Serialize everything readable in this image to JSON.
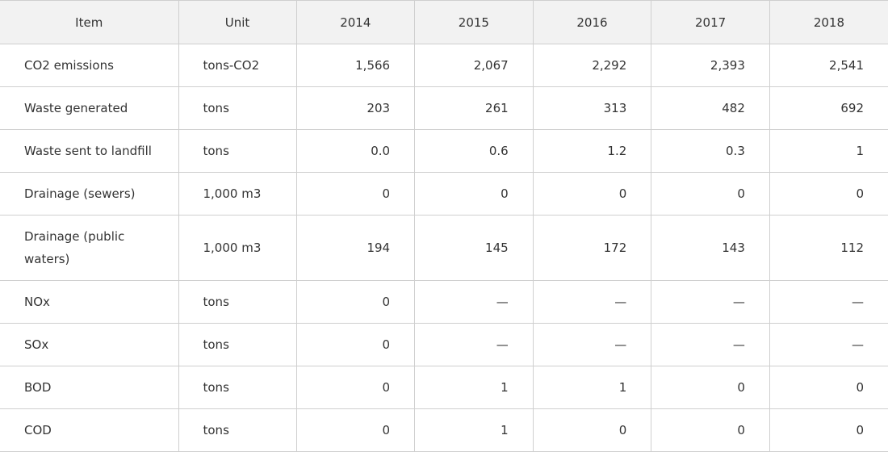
{
  "table": {
    "headers": {
      "item": "Item",
      "unit": "Unit",
      "years": [
        "2014",
        "2015",
        "2016",
        "2017",
        "2018"
      ]
    },
    "rows": [
      {
        "item": "CO2 emissions",
        "unit": "tons-CO2",
        "values": [
          "1,566",
          "2,067",
          "2,292",
          "2,393",
          "2,541"
        ]
      },
      {
        "item": "Waste generated",
        "unit": "tons",
        "values": [
          "203",
          "261",
          "313",
          "482",
          "692"
        ]
      },
      {
        "item": "Waste sent to landfill",
        "unit": "tons",
        "values": [
          "0.0",
          "0.6",
          "1.2",
          "0.3",
          "1"
        ]
      },
      {
        "item": "Drainage (sewers)",
        "unit": "1,000 m3",
        "values": [
          "0",
          "0",
          "0",
          "0",
          "0"
        ]
      },
      {
        "item": "Drainage (public waters)",
        "unit": "1,000 m3",
        "values": [
          "194",
          "145",
          "172",
          "143",
          "112"
        ]
      },
      {
        "item": "NOx",
        "unit": "tons",
        "values": [
          "0",
          "—",
          "—",
          "—",
          "—"
        ]
      },
      {
        "item": "SOx",
        "unit": "tons",
        "values": [
          "0",
          "—",
          "—",
          "—",
          "—"
        ]
      },
      {
        "item": "BOD",
        "unit": "tons",
        "values": [
          "0",
          "1",
          "1",
          "0",
          "0"
        ]
      },
      {
        "item": "COD",
        "unit": "tons",
        "values": [
          "0",
          "1",
          "0",
          "0",
          "0"
        ]
      }
    ]
  }
}
